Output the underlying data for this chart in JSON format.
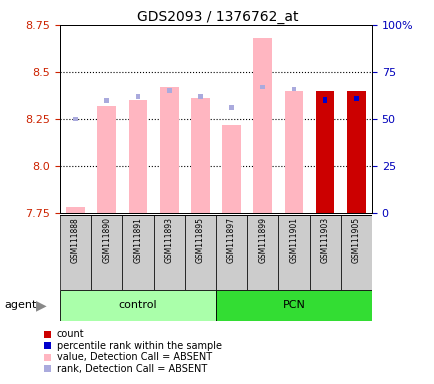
{
  "title": "GDS2093 / 1376762_at",
  "samples": [
    "GSM111888",
    "GSM111890",
    "GSM111891",
    "GSM111893",
    "GSM111895",
    "GSM111897",
    "GSM111899",
    "GSM111901",
    "GSM111903",
    "GSM111905"
  ],
  "ylim_left": [
    7.75,
    8.75
  ],
  "ylim_right": [
    0,
    100
  ],
  "yticks_left": [
    7.75,
    8.0,
    8.25,
    8.5,
    8.75
  ],
  "yticks_right": [
    0,
    25,
    50,
    75,
    100
  ],
  "ytick_labels_right": [
    "0",
    "25",
    "50",
    "75",
    "100%"
  ],
  "value_absent_left": [
    7.78,
    8.32,
    8.35,
    8.42,
    8.36,
    8.22,
    8.68,
    8.4,
    null,
    null
  ],
  "rank_absent_left": [
    8.25,
    8.35,
    8.37,
    8.4,
    8.37,
    8.31,
    8.42,
    8.41,
    null,
    null
  ],
  "value_present_right": [
    null,
    null,
    null,
    null,
    null,
    null,
    null,
    null,
    65,
    65
  ],
  "rank_present_right": [
    null,
    null,
    null,
    null,
    null,
    null,
    null,
    null,
    60,
    61
  ],
  "count_right": [
    null,
    null,
    null,
    null,
    null,
    null,
    null,
    null,
    65,
    65
  ],
  "rank_absent_right_dot": [
    49,
    null,
    null,
    null,
    null,
    56,
    67,
    null,
    null,
    null
  ],
  "rank_absent_right_small": [
    null,
    57,
    58,
    62,
    58,
    null,
    67,
    62,
    null,
    null
  ],
  "colors": {
    "value_absent": "#FFB6C1",
    "rank_absent": "#AAAADD",
    "value_present": "#CC0000",
    "rank_present": "#0000CC",
    "tick_left": "#CC2200",
    "tick_right": "#0000BB",
    "control_bg": "#AAFFAA",
    "pcn_bg": "#33DD33",
    "agent_arrow": "#888888"
  },
  "legend": [
    {
      "label": "count",
      "color": "#CC0000"
    },
    {
      "label": "percentile rank within the sample",
      "color": "#0000CC"
    },
    {
      "label": "value, Detection Call = ABSENT",
      "color": "#FFB6C1"
    },
    {
      "label": "rank, Detection Call = ABSENT",
      "color": "#AAAADD"
    }
  ]
}
